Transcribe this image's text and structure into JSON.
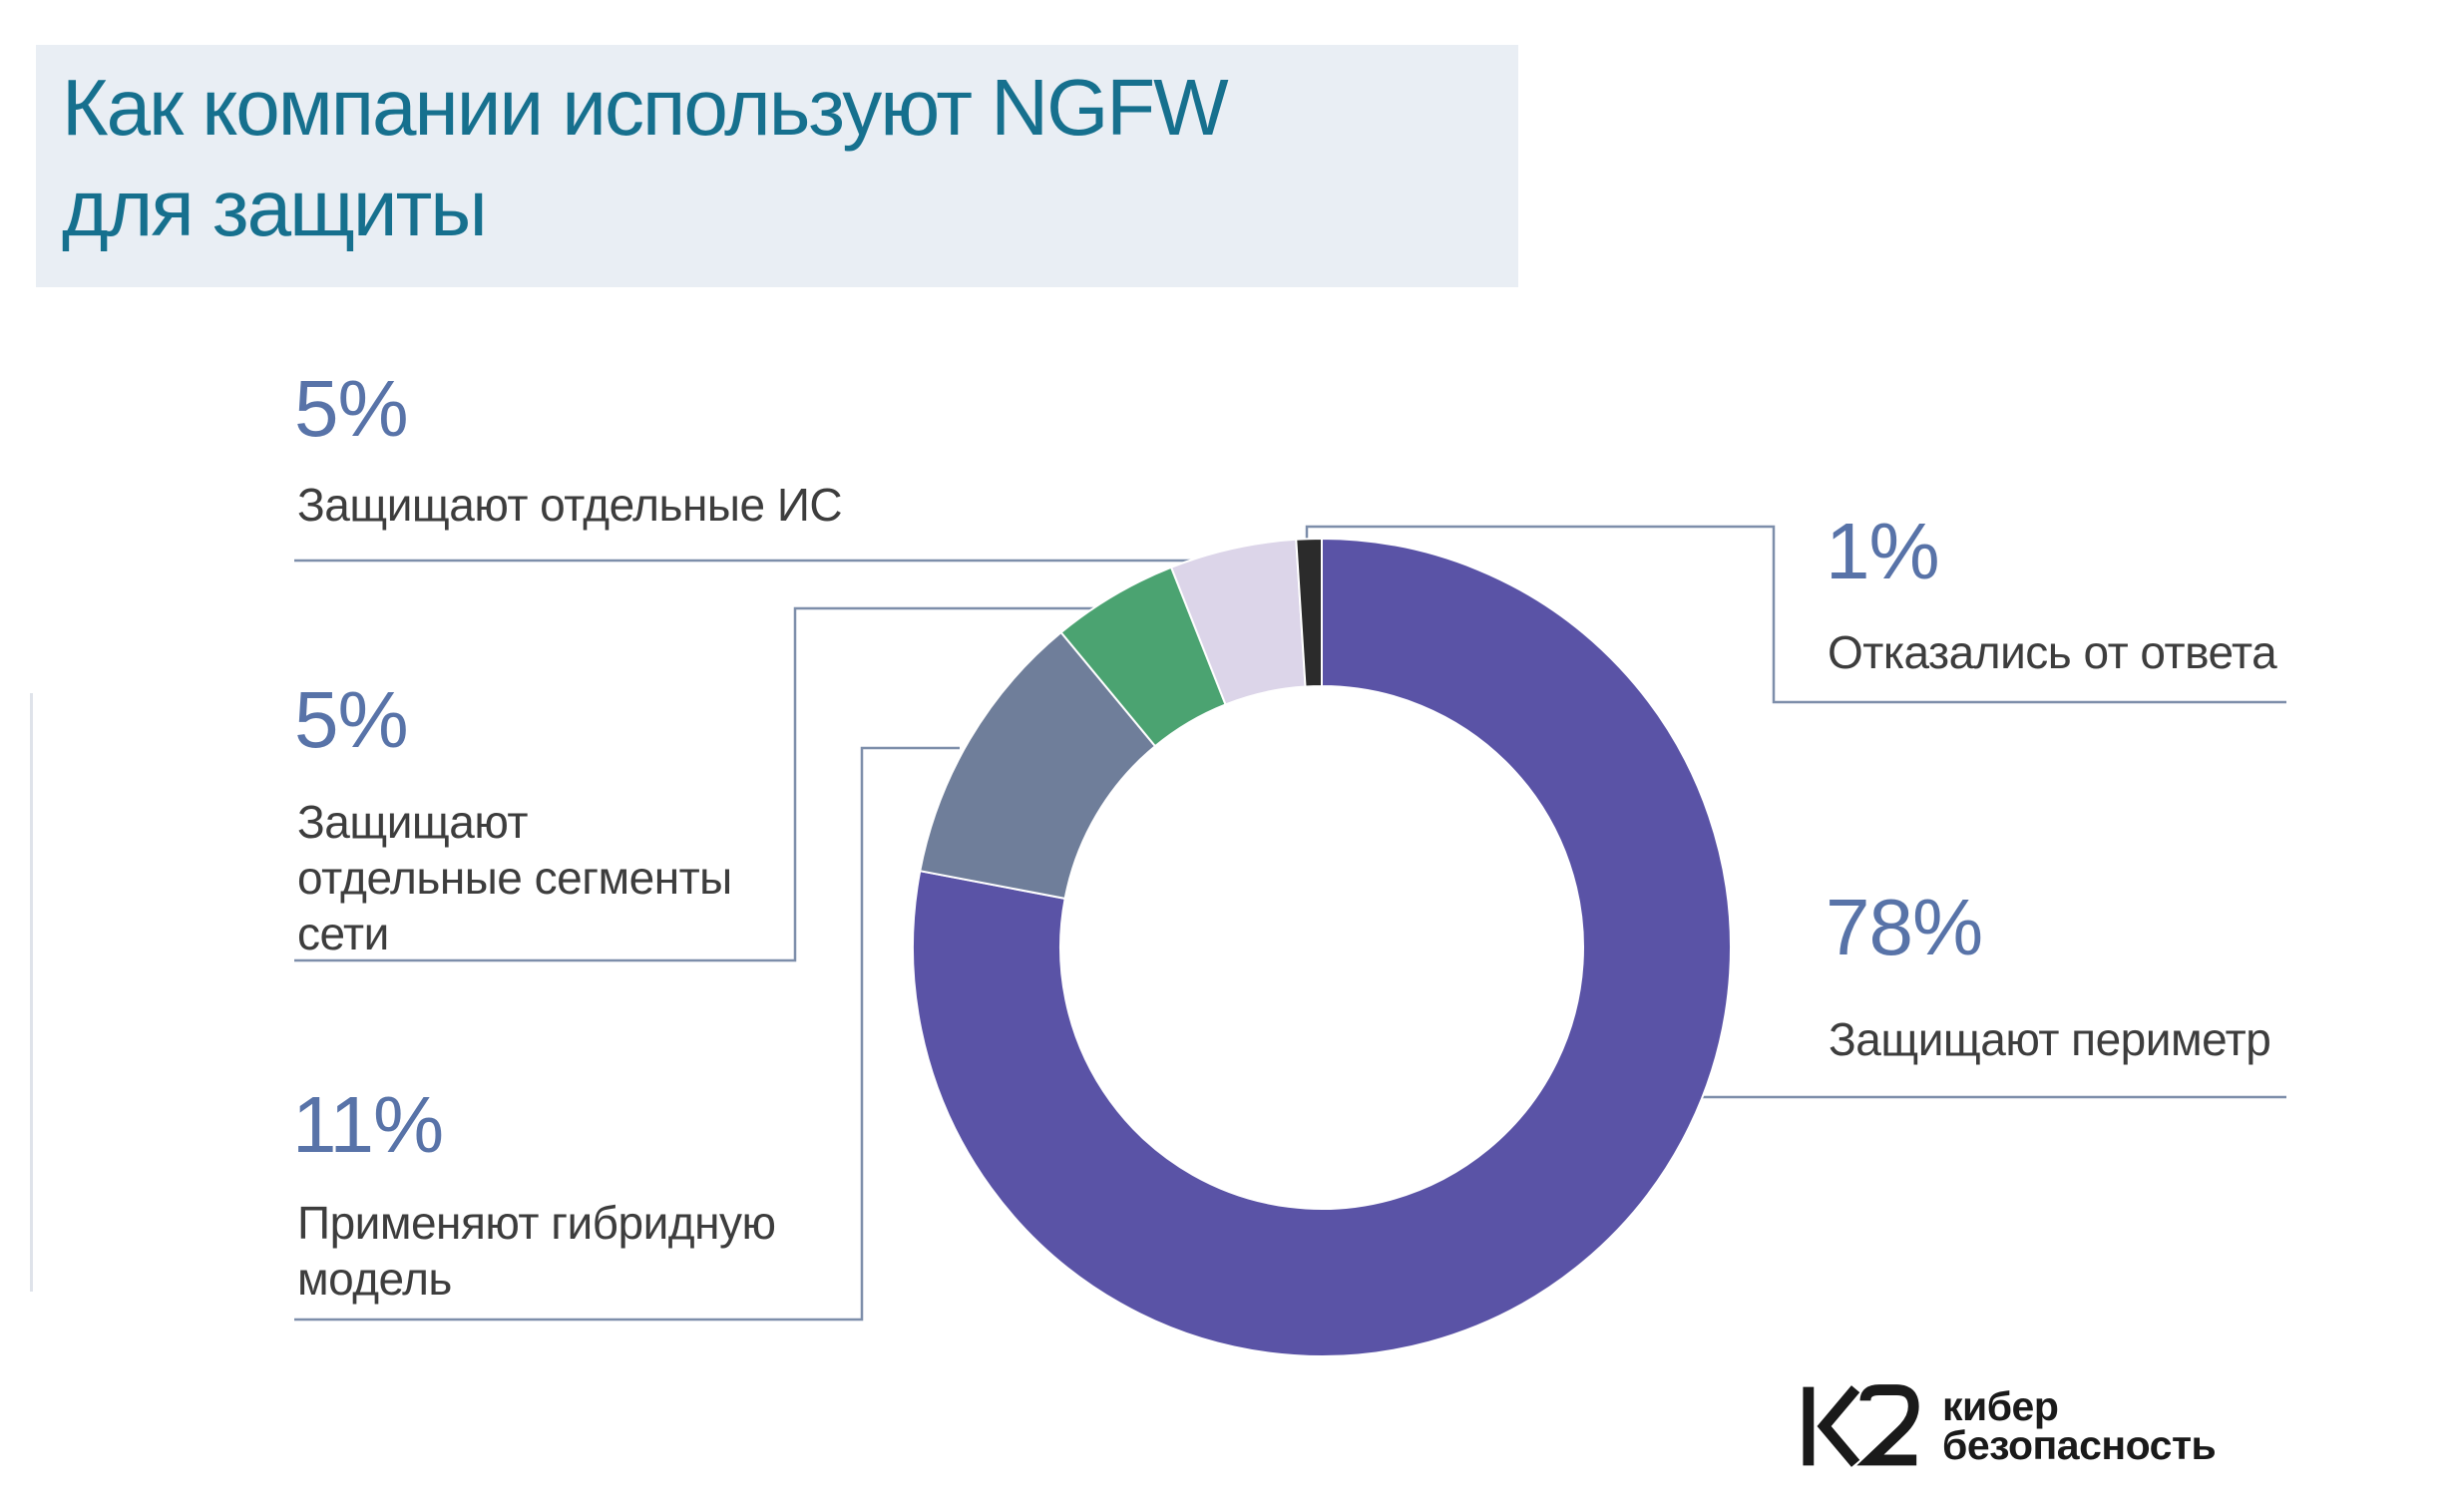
{
  "title": {
    "text": "Как компании используют NGFW\nдля защиты"
  },
  "chart_data": {
    "type": "pie",
    "donut": true,
    "start_angle": "top",
    "direction": "clockwise",
    "title": "Как компании используют NGFW для защиты",
    "categories": [
      "Защищают периметр",
      "Применяют гибридную модель",
      "Защищают отдельные сегменты сети",
      "Защищают отдельные ИС",
      "Отказались от ответа"
    ],
    "values": [
      78,
      11,
      5,
      5,
      1
    ],
    "slices": [
      {
        "label": "Защищают периметр",
        "value": 78,
        "color": "#5a53a6"
      },
      {
        "label": "Применяют гибридную модель",
        "value": 11,
        "color": "#6f7e9a"
      },
      {
        "label": "Защищают отдельные сегменты сети",
        "value": 5,
        "color": "#4ba371"
      },
      {
        "label": "Защищают отдельные ИС",
        "value": 5,
        "color": "#dcd5e9"
      },
      {
        "label": "Отказались от ответа",
        "value": 1,
        "color": "#2b2b2b"
      }
    ]
  },
  "callouts": [
    {
      "pct": "5%",
      "label": "Защищают отдельные ИС"
    },
    {
      "pct": "5%",
      "label": "Защищают\nотдельные сегменты\nсети"
    },
    {
      "pct": "11%",
      "label": "Применяют гибридную\nмодель"
    },
    {
      "pct": "1%",
      "label": "Отказались от ответа"
    },
    {
      "pct": "78%",
      "label": "Защищают периметр"
    }
  ],
  "logo": {
    "mark": "K2",
    "line1": "кибер",
    "line2": "безопасность"
  },
  "colors": {
    "title_text": "#16708e",
    "title_background": "#e9eef4",
    "percent_text": "#5873a8",
    "label_text": "#3d3d3d",
    "leader_line": "#7d8eaa",
    "background": "#ffffff"
  }
}
